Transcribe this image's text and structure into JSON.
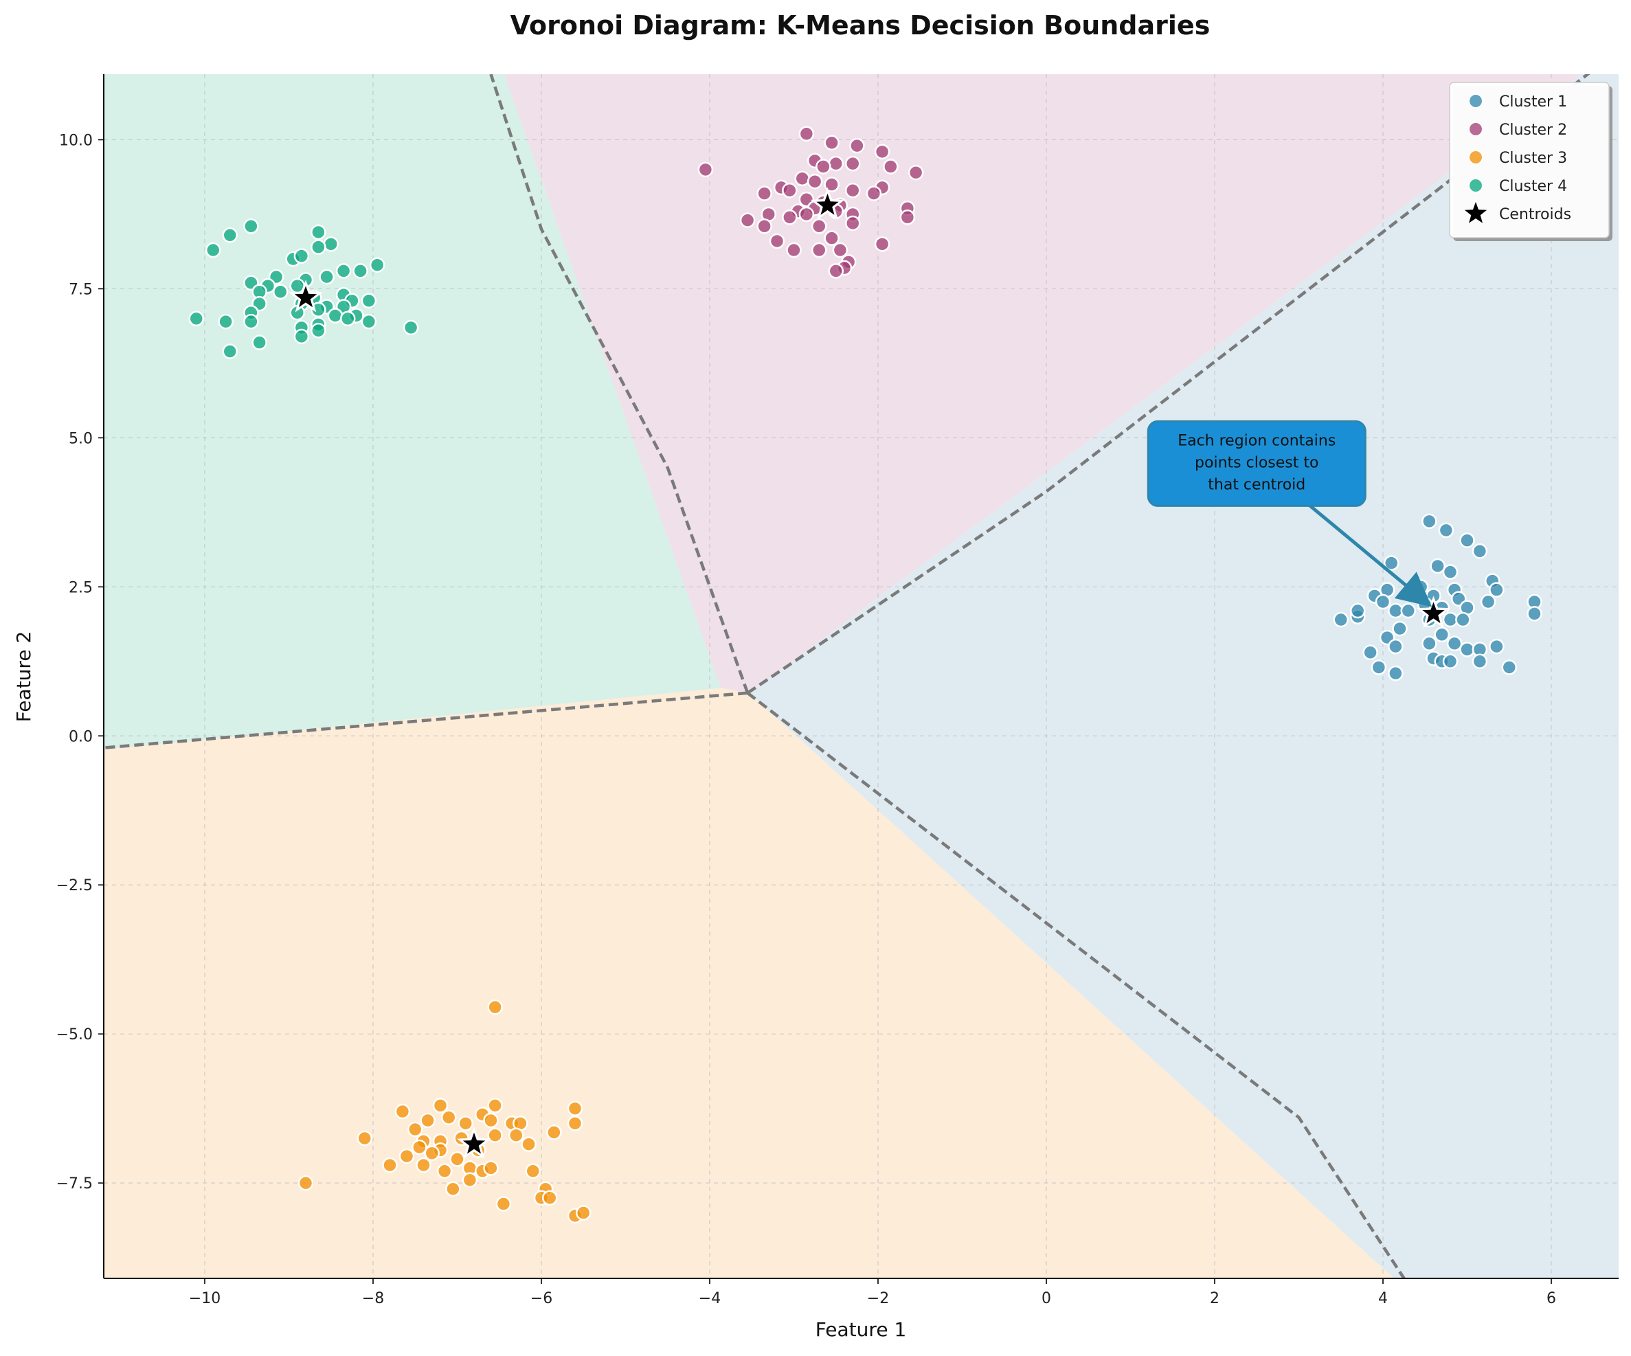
{
  "chart_data": {
    "type": "scatter",
    "title": "Voronoi Diagram: K-Means Decision Boundaries",
    "xlabel": "Feature 1",
    "ylabel": "Feature 2",
    "xlim": [
      -11.2,
      6.8
    ],
    "ylim": [
      -9.1,
      11.1
    ],
    "xticks": [
      -10,
      -8,
      -6,
      -4,
      -2,
      0,
      2,
      4,
      6
    ],
    "xtick_labels": [
      "−10",
      "−8",
      "−6",
      "−4",
      "−2",
      "0",
      "2",
      "4",
      "6"
    ],
    "yticks": [
      -7.5,
      -5.0,
      -2.5,
      0.0,
      2.5,
      5.0,
      7.5,
      10.0
    ],
    "ytick_labels": [
      "−7.5",
      "−5.0",
      "−2.5",
      "0.0",
      "2.5",
      "5.0",
      "7.5",
      "10.0"
    ],
    "grid": true,
    "legend_position": "top-right",
    "series": [
      {
        "name": "Cluster 1",
        "color": "#2E86AB",
        "region_color": "#dfebf1",
        "centroid": [
          4.6,
          2.05
        ],
        "points": [
          [
            4.55,
            3.6
          ],
          [
            4.75,
            3.45
          ],
          [
            5.0,
            3.28
          ],
          [
            5.15,
            3.1
          ],
          [
            4.1,
            2.9
          ],
          [
            4.65,
            2.85
          ],
          [
            4.8,
            2.75
          ],
          [
            5.3,
            2.6
          ],
          [
            3.9,
            2.35
          ],
          [
            4.05,
            2.45
          ],
          [
            4.45,
            2.5
          ],
          [
            4.6,
            2.35
          ],
          [
            4.85,
            2.45
          ],
          [
            5.35,
            2.45
          ],
          [
            5.25,
            2.25
          ],
          [
            5.8,
            2.25
          ],
          [
            5.8,
            2.05
          ],
          [
            3.5,
            1.95
          ],
          [
            3.7,
            2.0
          ],
          [
            3.7,
            2.1
          ],
          [
            4.0,
            2.25
          ],
          [
            4.15,
            2.1
          ],
          [
            4.3,
            2.1
          ],
          [
            4.5,
            2.2
          ],
          [
            4.7,
            2.15
          ],
          [
            4.9,
            2.3
          ],
          [
            5.0,
            2.15
          ],
          [
            4.55,
            1.95
          ],
          [
            4.8,
            1.95
          ],
          [
            4.95,
            1.95
          ],
          [
            4.2,
            1.8
          ],
          [
            4.05,
            1.65
          ],
          [
            4.15,
            1.5
          ],
          [
            4.55,
            1.55
          ],
          [
            4.85,
            1.55
          ],
          [
            4.7,
            1.7
          ],
          [
            3.85,
            1.4
          ],
          [
            5.0,
            1.45
          ],
          [
            5.15,
            1.45
          ],
          [
            5.35,
            1.5
          ],
          [
            4.6,
            1.3
          ],
          [
            4.7,
            1.25
          ],
          [
            4.8,
            1.25
          ],
          [
            5.15,
            1.25
          ],
          [
            3.95,
            1.15
          ],
          [
            4.15,
            1.05
          ],
          [
            5.5,
            1.15
          ]
        ]
      },
      {
        "name": "Cluster 2",
        "color": "#A23B72",
        "region_color": "#f0e0ea",
        "centroid": [
          -2.6,
          8.9
        ],
        "points": [
          [
            -2.85,
            10.1
          ],
          [
            -2.55,
            9.95
          ],
          [
            -2.25,
            9.9
          ],
          [
            -1.95,
            9.8
          ],
          [
            -2.75,
            9.65
          ],
          [
            -2.5,
            9.6
          ],
          [
            -2.3,
            9.6
          ],
          [
            -1.85,
            9.55
          ],
          [
            -2.65,
            9.55
          ],
          [
            -4.05,
            9.5
          ],
          [
            -1.55,
            9.45
          ],
          [
            -2.9,
            9.35
          ],
          [
            -2.75,
            9.3
          ],
          [
            -3.15,
            9.2
          ],
          [
            -3.35,
            9.1
          ],
          [
            -2.55,
            9.25
          ],
          [
            -1.95,
            9.2
          ],
          [
            -2.05,
            9.1
          ],
          [
            -2.3,
            9.15
          ],
          [
            -3.05,
            9.15
          ],
          [
            -2.85,
            9.0
          ],
          [
            -2.65,
            8.95
          ],
          [
            -2.45,
            8.9
          ],
          [
            -1.65,
            8.85
          ],
          [
            -1.65,
            8.7
          ],
          [
            -2.95,
            8.8
          ],
          [
            -2.75,
            8.85
          ],
          [
            -3.3,
            8.75
          ],
          [
            -3.55,
            8.65
          ],
          [
            -3.35,
            8.55
          ],
          [
            -3.05,
            8.7
          ],
          [
            -2.85,
            8.75
          ],
          [
            -2.7,
            8.55
          ],
          [
            -2.5,
            8.8
          ],
          [
            -2.3,
            8.75
          ],
          [
            -2.3,
            8.6
          ],
          [
            -2.55,
            8.35
          ],
          [
            -3.2,
            8.3
          ],
          [
            -3.0,
            8.15
          ],
          [
            -2.7,
            8.15
          ],
          [
            -2.45,
            8.15
          ],
          [
            -1.95,
            8.25
          ],
          [
            -2.35,
            7.95
          ],
          [
            -2.4,
            7.85
          ],
          [
            -2.5,
            7.8
          ]
        ]
      },
      {
        "name": "Cluster 3",
        "color": "#F18F01",
        "region_color": "#fdecd8",
        "centroid": [
          -6.8,
          -6.85
        ],
        "points": [
          [
            -6.55,
            -4.55
          ],
          [
            -7.65,
            -6.3
          ],
          [
            -7.2,
            -6.2
          ],
          [
            -6.55,
            -6.2
          ],
          [
            -5.6,
            -6.25
          ],
          [
            -6.7,
            -6.35
          ],
          [
            -7.35,
            -6.45
          ],
          [
            -7.5,
            -6.6
          ],
          [
            -7.1,
            -6.4
          ],
          [
            -6.9,
            -6.5
          ],
          [
            -6.6,
            -6.45
          ],
          [
            -6.35,
            -6.5
          ],
          [
            -6.25,
            -6.5
          ],
          [
            -5.6,
            -6.5
          ],
          [
            -8.1,
            -6.75
          ],
          [
            -7.4,
            -6.8
          ],
          [
            -7.2,
            -6.8
          ],
          [
            -6.95,
            -6.75
          ],
          [
            -6.55,
            -6.7
          ],
          [
            -6.3,
            -6.7
          ],
          [
            -5.85,
            -6.65
          ],
          [
            -7.45,
            -6.9
          ],
          [
            -7.2,
            -6.95
          ],
          [
            -6.75,
            -6.95
          ],
          [
            -6.15,
            -6.85
          ],
          [
            -7.6,
            -7.05
          ],
          [
            -7.3,
            -7.0
          ],
          [
            -7.0,
            -7.1
          ],
          [
            -7.8,
            -7.2
          ],
          [
            -7.4,
            -7.2
          ],
          [
            -7.15,
            -7.3
          ],
          [
            -6.85,
            -7.25
          ],
          [
            -6.7,
            -7.3
          ],
          [
            -6.6,
            -7.25
          ],
          [
            -6.1,
            -7.3
          ],
          [
            -6.85,
            -7.45
          ],
          [
            -7.05,
            -7.6
          ],
          [
            -5.95,
            -7.6
          ],
          [
            -6.0,
            -7.75
          ],
          [
            -5.9,
            -7.75
          ],
          [
            -6.45,
            -7.85
          ],
          [
            -8.8,
            -7.5
          ],
          [
            -5.6,
            -8.05
          ],
          [
            -5.5,
            -8.0
          ]
        ]
      },
      {
        "name": "Cluster 4",
        "color": "#06A77D",
        "region_color": "#d7f0e8",
        "centroid": [
          -8.8,
          7.35
        ],
        "points": [
          [
            -9.45,
            8.55
          ],
          [
            -8.65,
            8.45
          ],
          [
            -9.7,
            8.4
          ],
          [
            -9.9,
            8.15
          ],
          [
            -8.5,
            8.25
          ],
          [
            -8.65,
            8.2
          ],
          [
            -8.95,
            8.0
          ],
          [
            -8.85,
            8.05
          ],
          [
            -7.95,
            7.9
          ],
          [
            -8.35,
            7.8
          ],
          [
            -8.15,
            7.8
          ],
          [
            -8.55,
            7.7
          ],
          [
            -9.15,
            7.7
          ],
          [
            -8.8,
            7.65
          ],
          [
            -9.45,
            7.6
          ],
          [
            -9.25,
            7.55
          ],
          [
            -8.9,
            7.55
          ],
          [
            -9.35,
            7.45
          ],
          [
            -9.1,
            7.45
          ],
          [
            -8.35,
            7.4
          ],
          [
            -8.7,
            7.35
          ],
          [
            -8.25,
            7.3
          ],
          [
            -8.05,
            7.3
          ],
          [
            -9.35,
            7.25
          ],
          [
            -8.85,
            7.25
          ],
          [
            -8.55,
            7.2
          ],
          [
            -8.35,
            7.2
          ],
          [
            -8.65,
            7.15
          ],
          [
            -9.45,
            7.1
          ],
          [
            -8.9,
            7.1
          ],
          [
            -8.45,
            7.05
          ],
          [
            -8.2,
            7.05
          ],
          [
            -10.1,
            7.0
          ],
          [
            -9.75,
            6.95
          ],
          [
            -9.45,
            6.95
          ],
          [
            -8.3,
            7.0
          ],
          [
            -8.05,
            6.95
          ],
          [
            -8.65,
            6.9
          ],
          [
            -8.85,
            6.85
          ],
          [
            -8.65,
            6.8
          ],
          [
            -8.85,
            6.7
          ],
          [
            -7.55,
            6.85
          ],
          [
            -9.35,
            6.6
          ],
          [
            -9.7,
            6.45
          ]
        ]
      }
    ],
    "centroid_legend": "Centroids",
    "centroid_color": "#000000",
    "boundary_color": "#7a7a7a",
    "boundaries": [
      [
        [
          -3.55,
          0.72
        ],
        [
          -4.5,
          4.5
        ],
        [
          -6.0,
          8.5
        ],
        [
          -6.6,
          11.1
        ]
      ],
      [
        [
          -3.55,
          0.72
        ],
        [
          0.0,
          4.1
        ],
        [
          6.8,
          11.5
        ]
      ],
      [
        [
          -3.55,
          0.72
        ],
        [
          3.0,
          -6.4
        ],
        [
          4.25,
          -9.1
        ]
      ],
      [
        [
          -3.55,
          0.72
        ],
        [
          -11.2,
          -0.2
        ]
      ]
    ],
    "annotation": {
      "text_lines": [
        "Each region contains",
        "points closest to",
        "that centroid"
      ],
      "box_color": "#1a8fd6",
      "arrow_color": "#2E86AB",
      "text_anchor": [
        2.5,
        4.55
      ],
      "arrow_tail": [
        3.1,
        3.9
      ],
      "arrow_head": [
        4.55,
        2.2
      ]
    }
  }
}
